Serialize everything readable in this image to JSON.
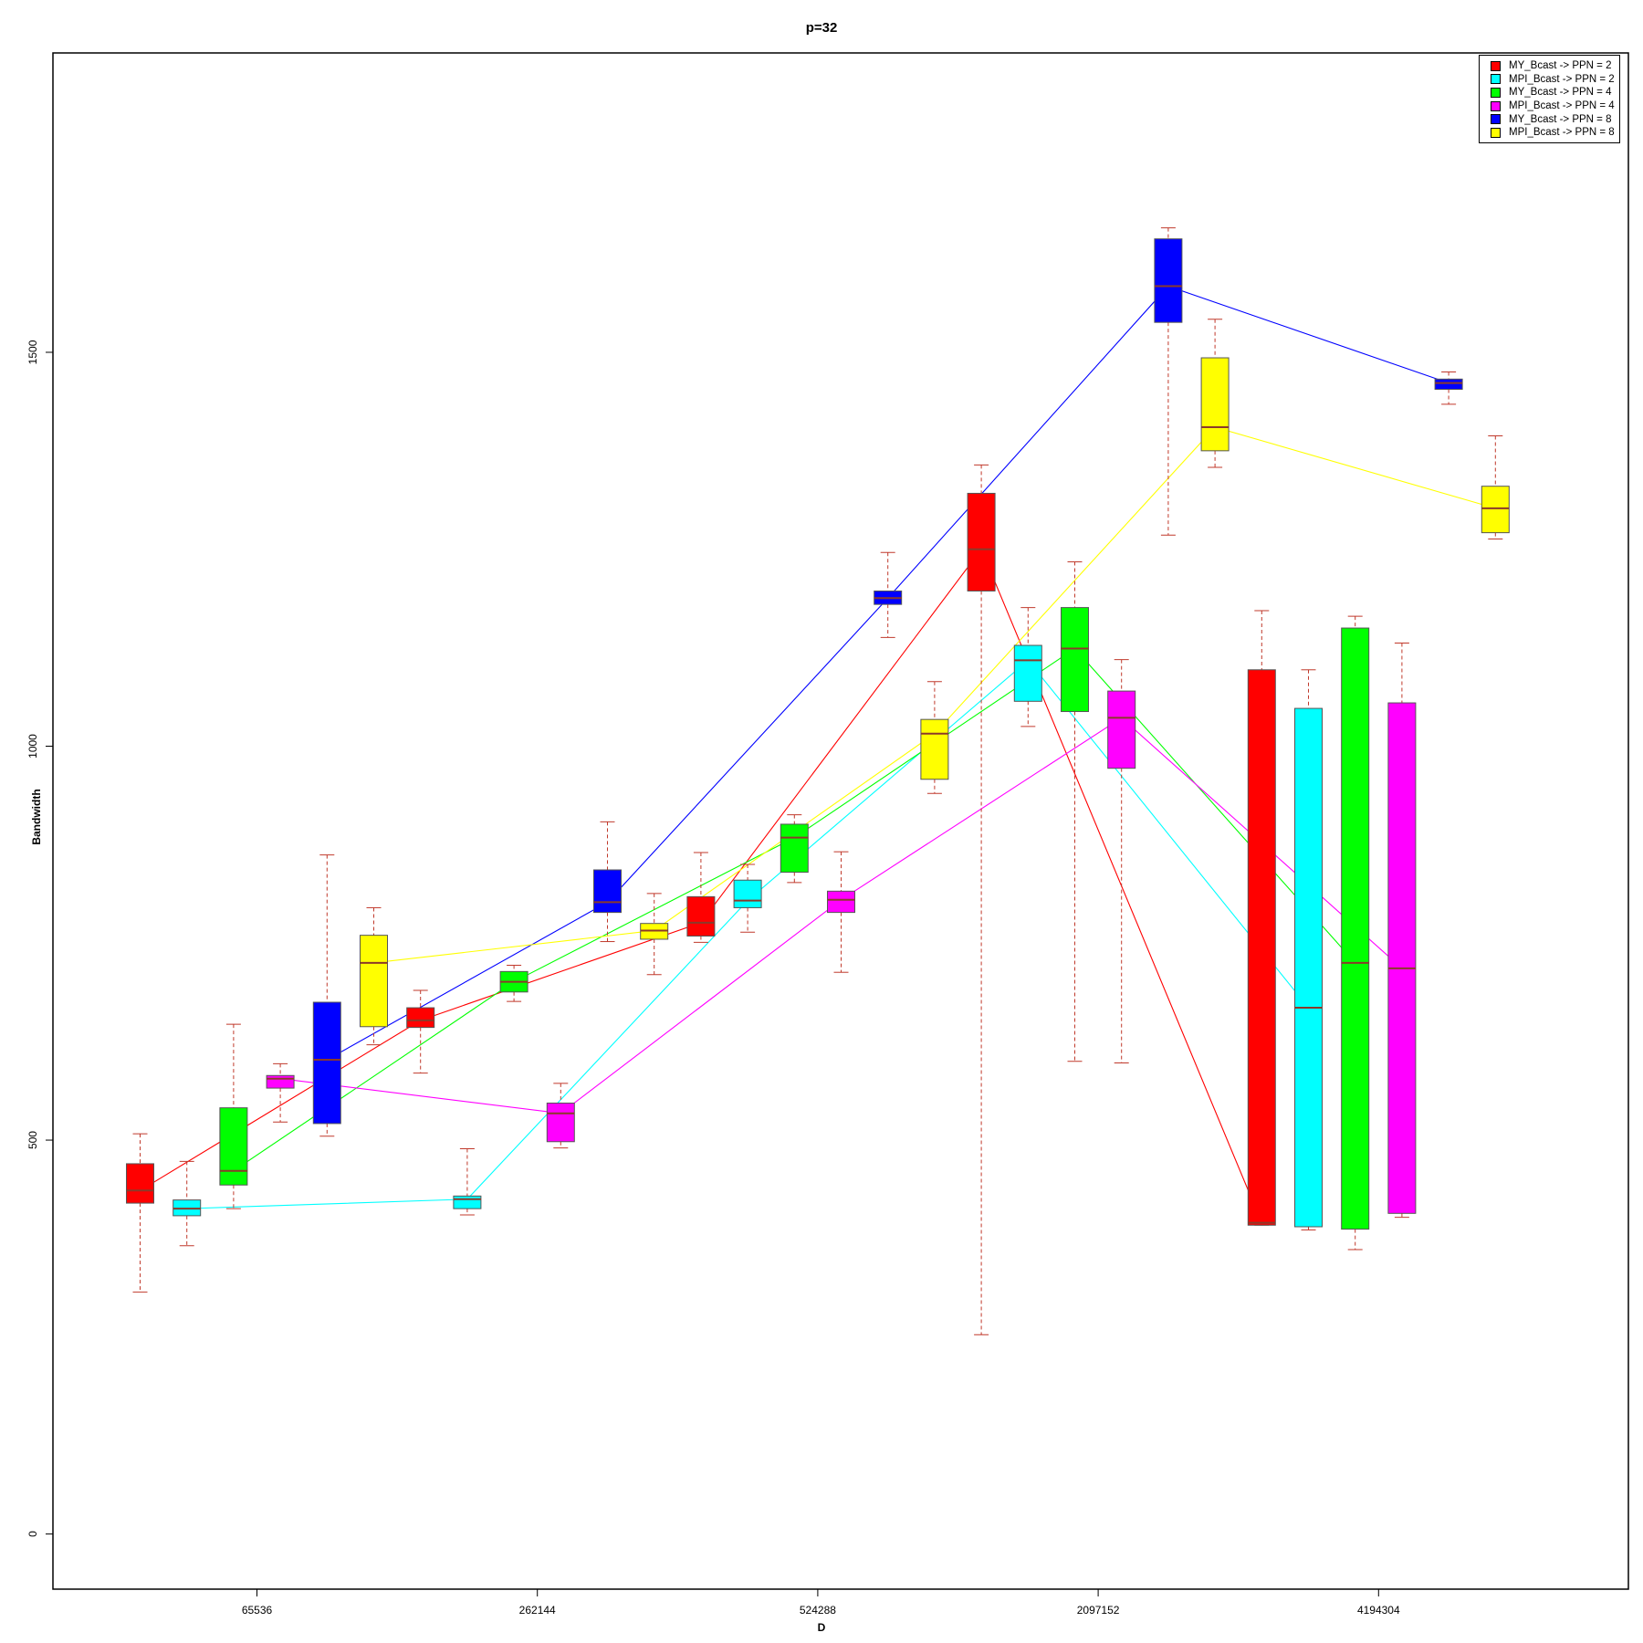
{
  "chart_data": {
    "type": "box",
    "title": "p=32",
    "xlabel": "D",
    "ylabel": "Bandwidth",
    "ylim": [
      -70,
      1880
    ],
    "y_ticks": [
      "0",
      "500",
      "1000",
      "1500"
    ],
    "x_ticks": [
      "65536",
      "262144",
      "524288",
      "2097152",
      "4194304"
    ],
    "grid": false,
    "legend_position": "top-right",
    "series": [
      {
        "name": "MY_Bcast -> PPN = 2",
        "color": "#ff0000",
        "boxes": [
          {
            "group": 0,
            "min": 307,
            "q1": 420,
            "median": 436,
            "q3": 470,
            "max": 508
          },
          {
            "group": 1,
            "min": 585,
            "q1": 643,
            "median": 652,
            "q3": 668,
            "max": 690
          },
          {
            "group": 2,
            "min": 751,
            "q1": 759,
            "median": 776,
            "q3": 809,
            "max": 865
          },
          {
            "group": 3,
            "min": 253,
            "q1": 1197,
            "median": 1250,
            "q3": 1321,
            "max": 1357
          },
          {
            "group": 4,
            "min": 392,
            "q1": 392,
            "median": 395,
            "q3": 1097,
            "max": 1172
          }
        ]
      },
      {
        "name": "MPI_Bcast -> PPN = 2",
        "color": "#00ffff",
        "boxes": [
          {
            "group": 0,
            "min": 366,
            "q1": 404,
            "median": 413,
            "q3": 424,
            "max": 473
          },
          {
            "group": 1,
            "min": 405,
            "q1": 413,
            "median": 425,
            "q3": 429,
            "max": 489
          },
          {
            "group": 2,
            "min": 764,
            "q1": 795,
            "median": 804,
            "q3": 830,
            "max": 850
          },
          {
            "group": 3,
            "min": 1025,
            "q1": 1057,
            "median": 1109,
            "q3": 1128,
            "max": 1176
          },
          {
            "group": 4,
            "min": 386,
            "q1": 390,
            "median": 668,
            "q3": 1048,
            "max": 1097
          }
        ]
      },
      {
        "name": "MY_Bcast -> PPN = 4",
        "color": "#00ff00",
        "boxes": [
          {
            "group": 0,
            "min": 413,
            "q1": 443,
            "median": 461,
            "q3": 541,
            "max": 647
          },
          {
            "group": 1,
            "min": 676,
            "q1": 688,
            "median": 701,
            "q3": 714,
            "max": 722
          },
          {
            "group": 2,
            "min": 827,
            "q1": 840,
            "median": 884,
            "q3": 901,
            "max": 913
          },
          {
            "group": 3,
            "min": 600,
            "q1": 1044,
            "median": 1124,
            "q3": 1176,
            "max": 1234
          },
          {
            "group": 4,
            "min": 361,
            "q1": 387,
            "median": 725,
            "q3": 1150,
            "max": 1165
          }
        ]
      },
      {
        "name": "MPI_Bcast -> PPN = 4",
        "color": "#ff00ff",
        "boxes": [
          {
            "group": 0,
            "min": 523,
            "q1": 566,
            "median": 578,
            "q3": 582,
            "max": 597
          },
          {
            "group": 1,
            "min": 490,
            "q1": 498,
            "median": 534,
            "q3": 547,
            "max": 572
          },
          {
            "group": 2,
            "min": 713,
            "q1": 789,
            "median": 805,
            "q3": 816,
            "max": 866
          },
          {
            "group": 3,
            "min": 598,
            "q1": 972,
            "median": 1036,
            "q3": 1070,
            "max": 1110
          },
          {
            "group": 4,
            "min": 402,
            "q1": 407,
            "median": 718,
            "q3": 1055,
            "max": 1131
          }
        ]
      },
      {
        "name": "MY_Bcast -> PPN = 8",
        "color": "#0000ff",
        "boxes": [
          {
            "group": 0,
            "min": 505,
            "q1": 521,
            "median": 602,
            "q3": 675,
            "max": 862
          },
          {
            "group": 1,
            "min": 752,
            "q1": 789,
            "median": 802,
            "q3": 843,
            "max": 904
          },
          {
            "group": 2,
            "min": 1138,
            "q1": 1180,
            "median": 1188,
            "q3": 1197,
            "max": 1246
          },
          {
            "group": 3,
            "min": 1268,
            "q1": 1538,
            "median": 1584,
            "q3": 1644,
            "max": 1658
          },
          {
            "group": 4,
            "min": 1434,
            "q1": 1453,
            "median": 1461,
            "q3": 1466,
            "max": 1475
          }
        ]
      },
      {
        "name": "MPI_Bcast -> PPN = 8",
        "color": "#ffff00",
        "boxes": [
          {
            "group": 0,
            "min": 621,
            "q1": 644,
            "median": 725,
            "q3": 760,
            "max": 795
          },
          {
            "group": 1,
            "min": 710,
            "q1": 755,
            "median": 766,
            "q3": 775,
            "max": 813
          },
          {
            "group": 2,
            "min": 940,
            "q1": 958,
            "median": 1016,
            "q3": 1034,
            "max": 1082
          },
          {
            "group": 3,
            "min": 1354,
            "q1": 1375,
            "median": 1405,
            "q3": 1493,
            "max": 1542
          },
          {
            "group": 4,
            "min": 1263,
            "q1": 1271,
            "median": 1302,
            "q3": 1330,
            "max": 1394
          }
        ]
      }
    ]
  }
}
